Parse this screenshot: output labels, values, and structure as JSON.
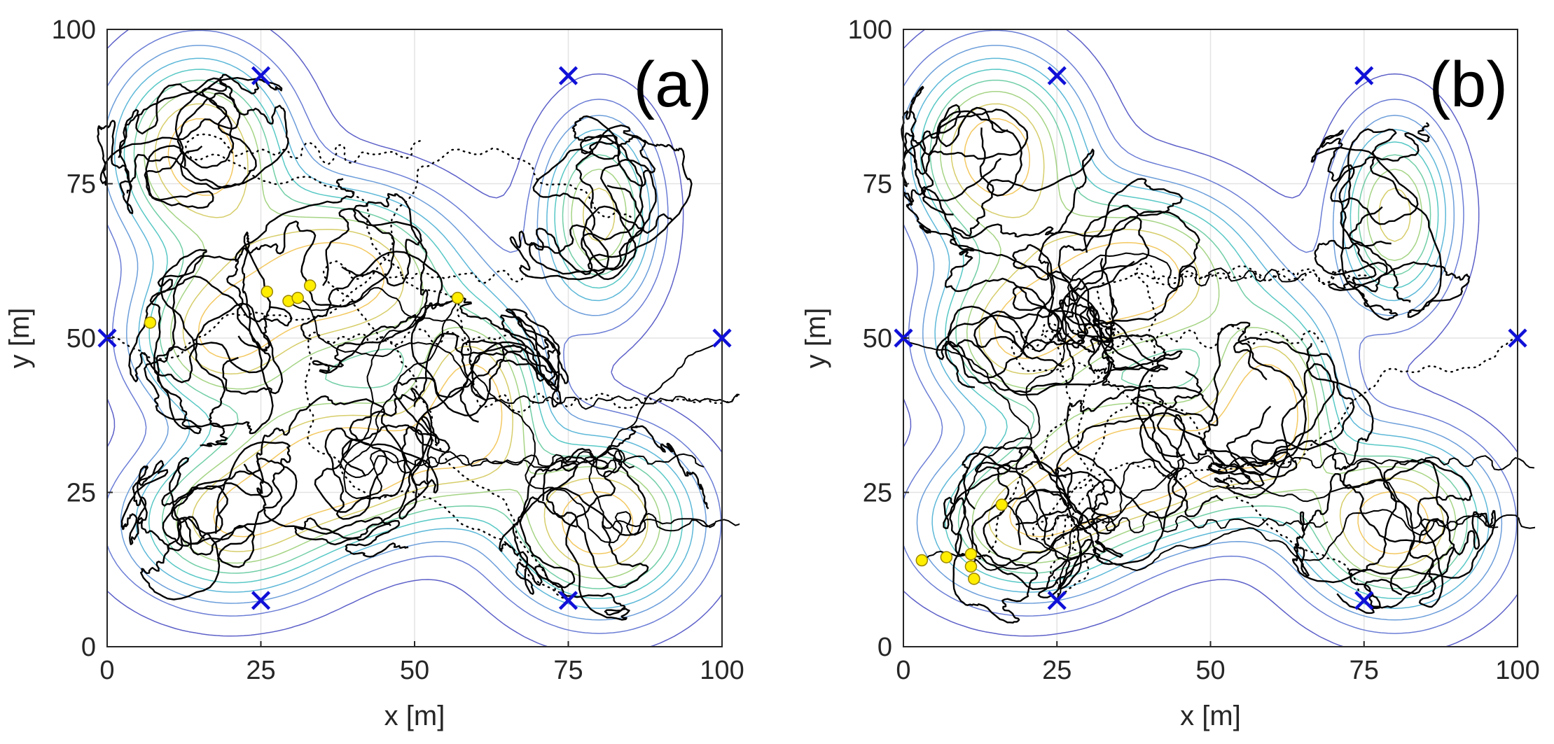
{
  "figure": {
    "background": "#ffffff"
  },
  "style": {
    "trajectory_color": "#000000",
    "agent_color": "#ffee00",
    "agent_edge": "#9a8500",
    "marker_color": "#1010d8",
    "grid_color": "#e3e3e3",
    "contour_colors": [
      "#4b4fc2",
      "#5b6fd0",
      "#5c93d6",
      "#4bb0d4",
      "#45c2bf",
      "#62c99c",
      "#9bcf78",
      "#d1c85a",
      "#f2c250"
    ]
  },
  "chart_data": [
    {
      "type": "scatter",
      "title": "(a)",
      "xlabel": "x [m]",
      "ylabel": "y [m]",
      "xlim": [
        0,
        100
      ],
      "ylim": [
        0,
        100
      ],
      "xticks": [
        0,
        25,
        50,
        75,
        100
      ],
      "yticks": [
        0,
        25,
        50,
        75,
        100
      ],
      "grid": true,
      "density_peaks": [
        {
          "x": 15,
          "y": 80,
          "sx": 9,
          "sy": 10,
          "w": 1.0
        },
        {
          "x": 18,
          "y": 50,
          "sx": 9,
          "sy": 8,
          "w": 0.8
        },
        {
          "x": 38,
          "y": 60,
          "sx": 12,
          "sy": 9,
          "w": 1.0
        },
        {
          "x": 60,
          "y": 40,
          "sx": 7,
          "sy": 10,
          "w": 0.9
        },
        {
          "x": 40,
          "y": 30,
          "sx": 12,
          "sy": 8,
          "w": 1.0
        },
        {
          "x": 20,
          "y": 20,
          "sx": 11,
          "sy": 8,
          "w": 0.8
        },
        {
          "x": 80,
          "y": 20,
          "sx": 10,
          "sy": 9,
          "w": 1.0
        },
        {
          "x": 80,
          "y": 70,
          "sx": 6,
          "sy": 10,
          "w": 0.8
        }
      ],
      "base_stations": [
        {
          "x": 25,
          "y": 92.5
        },
        {
          "x": 75,
          "y": 92.5
        },
        {
          "x": 0,
          "y": 50
        },
        {
          "x": 100,
          "y": 50
        },
        {
          "x": 25,
          "y": 7.5
        },
        {
          "x": 75,
          "y": 7.5
        }
      ],
      "agents": [
        {
          "x": 7,
          "y": 52.5
        },
        {
          "x": 26,
          "y": 57.5
        },
        {
          "x": 29.5,
          "y": 56
        },
        {
          "x": 31,
          "y": 56.5
        },
        {
          "x": 33,
          "y": 58.5
        },
        {
          "x": 57,
          "y": 56.5
        }
      ]
    },
    {
      "type": "scatter",
      "title": "(b)",
      "xlabel": "x [m]",
      "ylabel": "y [m]",
      "xlim": [
        0,
        100
      ],
      "ylim": [
        0,
        100
      ],
      "xticks": [
        0,
        25,
        50,
        75,
        100
      ],
      "yticks": [
        0,
        25,
        50,
        75,
        100
      ],
      "grid": true,
      "density_peaks": [
        {
          "x": 15,
          "y": 80,
          "sx": 9,
          "sy": 10,
          "w": 1.0
        },
        {
          "x": 18,
          "y": 50,
          "sx": 9,
          "sy": 8,
          "w": 0.8
        },
        {
          "x": 38,
          "y": 60,
          "sx": 12,
          "sy": 9,
          "w": 1.0
        },
        {
          "x": 60,
          "y": 40,
          "sx": 7,
          "sy": 10,
          "w": 0.9
        },
        {
          "x": 40,
          "y": 30,
          "sx": 12,
          "sy": 8,
          "w": 1.0
        },
        {
          "x": 20,
          "y": 20,
          "sx": 11,
          "sy": 8,
          "w": 0.8
        },
        {
          "x": 80,
          "y": 20,
          "sx": 10,
          "sy": 9,
          "w": 1.0
        },
        {
          "x": 80,
          "y": 70,
          "sx": 6,
          "sy": 10,
          "w": 0.8
        }
      ],
      "base_stations": [
        {
          "x": 25,
          "y": 92.5
        },
        {
          "x": 75,
          "y": 92.5
        },
        {
          "x": 0,
          "y": 50
        },
        {
          "x": 100,
          "y": 50
        },
        {
          "x": 25,
          "y": 7.5
        },
        {
          "x": 75,
          "y": 7.5
        }
      ],
      "agents": [
        {
          "x": 3,
          "y": 14
        },
        {
          "x": 7,
          "y": 14.5
        },
        {
          "x": 11,
          "y": 15
        },
        {
          "x": 11,
          "y": 13
        },
        {
          "x": 11.5,
          "y": 11
        },
        {
          "x": 16,
          "y": 23
        }
      ]
    }
  ]
}
